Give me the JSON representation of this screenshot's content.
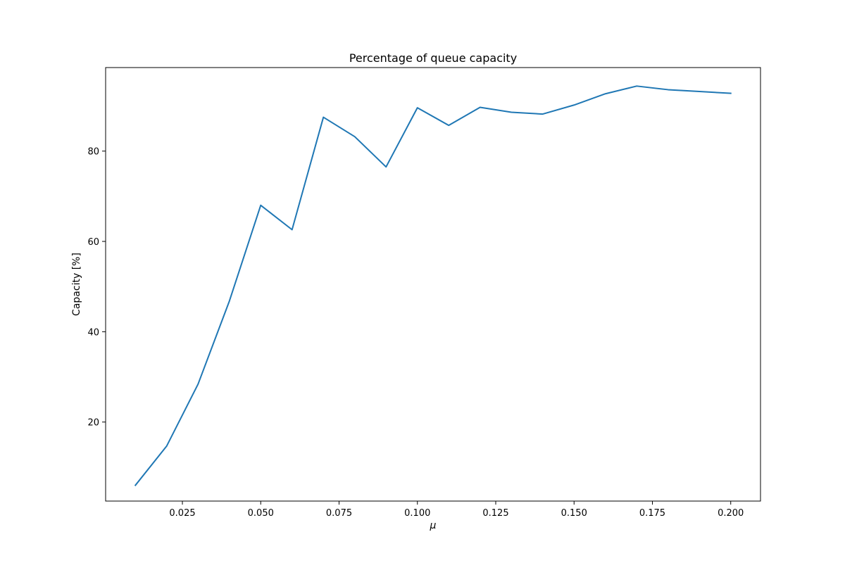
{
  "chart_data": {
    "type": "line",
    "title": "Percentage of queue capacity",
    "xlabel": "μ",
    "ylabel": "Capacity [%]",
    "xlim": [
      0.0005,
      0.2095
    ],
    "ylim": [
      2.5,
      98.5
    ],
    "xticks": [
      0.025,
      0.05,
      0.075,
      0.1,
      0.125,
      0.15,
      0.175,
      0.2
    ],
    "xtick_labels": [
      "0.025",
      "0.050",
      "0.075",
      "0.100",
      "0.125",
      "0.150",
      "0.175",
      "0.200"
    ],
    "yticks": [
      20,
      40,
      60,
      80
    ],
    "ytick_labels": [
      "20",
      "40",
      "60",
      "80"
    ],
    "grid": false,
    "line_color": "#1f77b4",
    "series": [
      {
        "x": [
          0.01,
          0.02,
          0.03,
          0.04,
          0.05,
          0.06,
          0.07,
          0.08,
          0.09,
          0.1,
          0.11,
          0.12,
          0.13,
          0.14,
          0.15,
          0.16,
          0.17,
          0.18,
          0.19,
          0.2
        ],
        "values": [
          6.0,
          14.7,
          28.4,
          46.8,
          68.0,
          62.6,
          87.5,
          83.2,
          76.5,
          89.6,
          85.7,
          89.7,
          88.6,
          88.2,
          90.2,
          92.7,
          94.4,
          93.6,
          93.2,
          92.8
        ]
      }
    ]
  }
}
